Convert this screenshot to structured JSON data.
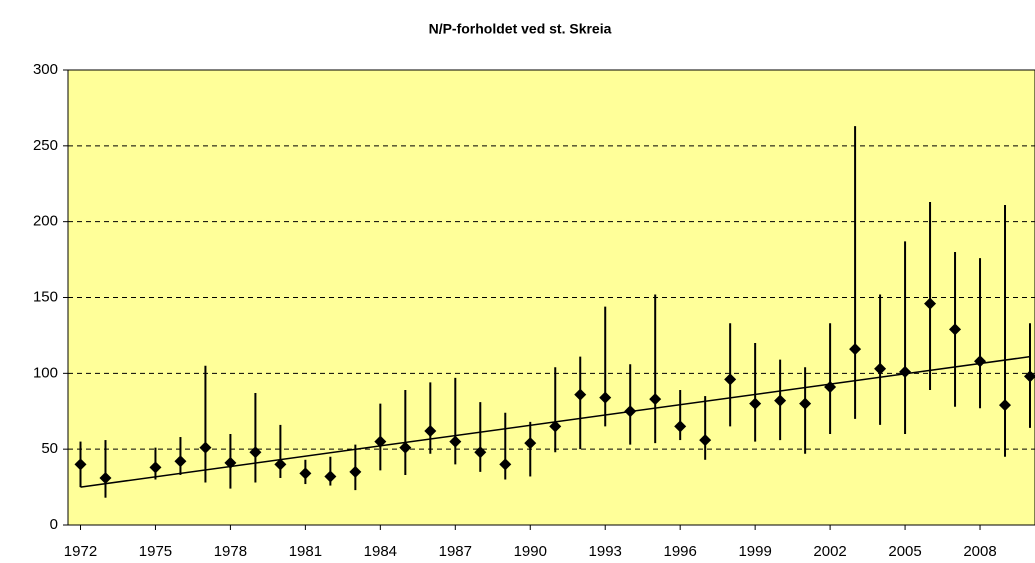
{
  "chart_data": {
    "type": "errorbar",
    "title": "N/P-forholdet ved st. Skreia",
    "x": [
      1972,
      1973,
      1975,
      1976,
      1977,
      1978,
      1979,
      1980,
      1981,
      1982,
      1983,
      1984,
      1985,
      1986,
      1987,
      1988,
      1989,
      1990,
      1991,
      1992,
      1993,
      1994,
      1995,
      1996,
      1997,
      1998,
      1999,
      2000,
      2001,
      2002,
      2003,
      2004,
      2005,
      2006,
      2007,
      2008,
      2009,
      2010
    ],
    "series": [
      {
        "color": "#000000",
        "values": [
          40,
          31,
          38,
          42,
          51,
          41,
          48,
          40,
          34,
          32,
          35,
          55,
          51,
          62,
          55,
          48,
          40,
          54,
          65,
          86,
          84,
          75,
          83,
          65,
          56,
          96,
          80,
          82,
          80,
          91,
          116,
          103,
          101,
          146,
          129,
          108,
          79,
          98
        ],
        "low": [
          25,
          18,
          30,
          33,
          28,
          24,
          28,
          31,
          27,
          26,
          23,
          36,
          33,
          47,
          40,
          35,
          30,
          32,
          48,
          50,
          65,
          53,
          54,
          56,
          43,
          65,
          55,
          56,
          47,
          60,
          70,
          66,
          60,
          89,
          78,
          77,
          45,
          64
        ],
        "high": [
          55,
          56,
          51,
          58,
          105,
          60,
          87,
          66,
          43,
          45,
          53,
          80,
          89,
          94,
          97,
          81,
          74,
          68,
          104,
          111,
          144,
          106,
          152,
          89,
          85,
          133,
          120,
          109,
          104,
          133,
          263,
          152,
          187,
          213,
          180,
          176,
          211,
          133
        ]
      }
    ],
    "trend": {
      "x": [
        1972,
        2010
      ],
      "values": [
        25,
        111
      ],
      "color": "#000000"
    },
    "xlim": [
      1971.5,
      2010.2
    ],
    "ylim": [
      0,
      300
    ],
    "xticks": [
      1972,
      1975,
      1978,
      1981,
      1984,
      1987,
      1990,
      1993,
      1996,
      1999,
      2002,
      2005,
      2008
    ],
    "yticks": [
      0,
      50,
      100,
      150,
      200,
      250,
      300
    ],
    "grid": true,
    "background": "#ffff99"
  }
}
